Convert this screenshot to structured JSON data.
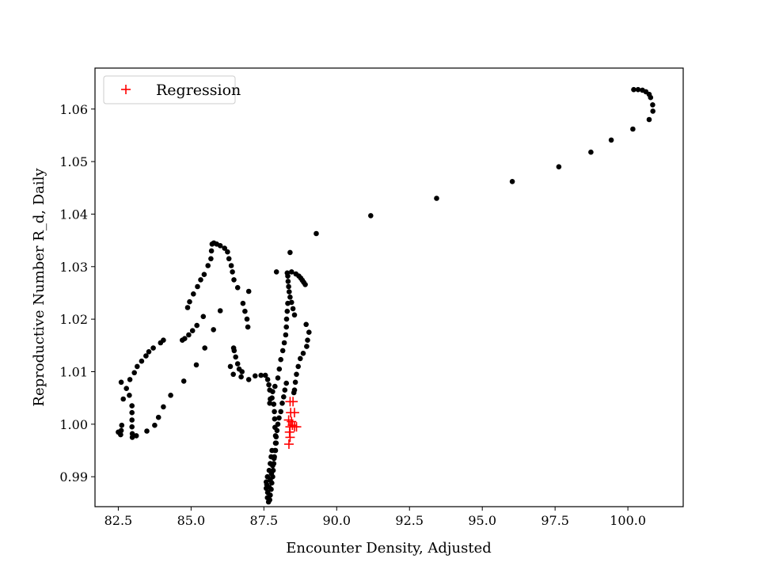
{
  "chart_data": {
    "type": "scatter",
    "title": "",
    "xlabel": "Encounter Density, Adjusted",
    "ylabel": "Reproductive Number R_d, Daily",
    "xlim": [
      81.7,
      101.9
    ],
    "ylim": [
      0.9843,
      1.0678
    ],
    "x_ticks": [
      82.5,
      85.0,
      87.5,
      90.0,
      92.5,
      95.0,
      97.5,
      100.0
    ],
    "y_ticks": [
      0.99,
      1.0,
      1.01,
      1.02,
      1.03,
      1.04,
      1.05,
      1.06
    ],
    "x_tick_labels": [
      "82.5",
      "85.0",
      "87.5",
      "90.0",
      "92.5",
      "95.0",
      "97.5",
      "100.0"
    ],
    "y_tick_labels": [
      "0.99",
      "1.00",
      "1.01",
      "1.02",
      "1.03",
      "1.04",
      "1.05",
      "1.06"
    ],
    "grid": false,
    "legend": {
      "position": "top-left",
      "entries": [
        {
          "label": "Regression",
          "marker": "+",
          "color": "#ff0000"
        }
      ]
    },
    "colors": {
      "data": "#000000",
      "regression": "#ff0000"
    },
    "series": [
      {
        "marker": "circle",
        "color": "#000000",
        "points": [
          [
            100.2,
            1.0637
          ],
          [
            100.35,
            1.0637
          ],
          [
            100.5,
            1.0636
          ],
          [
            100.62,
            1.0633
          ],
          [
            100.73,
            1.0628
          ],
          [
            100.78,
            1.0622
          ],
          [
            100.85,
            1.0608
          ],
          [
            100.86,
            1.0596
          ],
          [
            100.73,
            1.058
          ],
          [
            100.17,
            1.0562
          ],
          [
            99.43,
            1.0541
          ],
          [
            98.73,
            1.0518
          ],
          [
            97.63,
            1.049
          ],
          [
            96.03,
            1.0462
          ],
          [
            93.43,
            1.043
          ],
          [
            91.17,
            1.0397
          ],
          [
            89.3,
            1.0363
          ],
          [
            88.4,
            1.0327
          ],
          [
            88.45,
            1.029
          ],
          [
            88.3,
            1.0288
          ],
          [
            88.6,
            1.0286
          ],
          [
            88.7,
            1.0282
          ],
          [
            88.77,
            1.0278
          ],
          [
            88.82,
            1.0274
          ],
          [
            88.87,
            1.027
          ],
          [
            88.92,
            1.0266
          ],
          [
            88.32,
            1.0282
          ],
          [
            88.33,
            1.0272
          ],
          [
            88.35,
            1.0262
          ],
          [
            88.37,
            1.0252
          ],
          [
            88.4,
            1.0242
          ],
          [
            88.45,
            1.0232
          ],
          [
            88.5,
            1.022
          ],
          [
            88.55,
            1.0208
          ],
          [
            88.32,
            1.023
          ],
          [
            88.3,
            1.0215
          ],
          [
            88.28,
            1.02
          ],
          [
            88.27,
            1.0185
          ],
          [
            88.25,
            1.017
          ],
          [
            88.2,
            1.0155
          ],
          [
            88.15,
            1.014
          ],
          [
            88.08,
            1.0123
          ],
          [
            88.03,
            1.0105
          ],
          [
            87.98,
            1.0088
          ],
          [
            87.88,
            1.0072
          ],
          [
            87.8,
            1.0062
          ],
          [
            87.72,
            1.0048
          ],
          [
            87.7,
            1.004
          ],
          [
            88.95,
            1.019
          ],
          [
            89.05,
            1.0175
          ],
          [
            89.0,
            1.016
          ],
          [
            88.97,
            1.0148
          ],
          [
            88.85,
            1.0135
          ],
          [
            88.75,
            1.0125
          ],
          [
            88.68,
            1.011
          ],
          [
            88.62,
            1.0095
          ],
          [
            88.58,
            1.008
          ],
          [
            88.55,
            1.0065
          ],
          [
            88.53,
            1.006
          ],
          [
            87.55,
            1.0093
          ],
          [
            87.63,
            1.0085
          ],
          [
            87.67,
            1.0075
          ],
          [
            87.7,
            1.0065
          ],
          [
            87.78,
            1.005
          ],
          [
            87.84,
            1.0038
          ],
          [
            87.86,
            1.0024
          ],
          [
            87.87,
            1.001
          ],
          [
            87.88,
            0.9994
          ],
          [
            87.9,
            0.9978
          ],
          [
            87.92,
            0.9964
          ],
          [
            87.9,
            0.995
          ],
          [
            87.85,
            0.9935
          ],
          [
            87.8,
            0.9921
          ],
          [
            87.76,
            0.9906
          ],
          [
            87.72,
            0.9894
          ],
          [
            87.68,
            0.988
          ],
          [
            87.63,
            0.987
          ],
          [
            87.6,
            0.9885
          ],
          [
            87.58,
            0.9878
          ],
          [
            87.62,
            0.986
          ],
          [
            87.66,
            0.9852
          ],
          [
            87.7,
            0.9856
          ],
          [
            87.72,
            0.9865
          ],
          [
            87.75,
            0.9876
          ],
          [
            87.77,
            0.9888
          ],
          [
            87.8,
            0.99
          ],
          [
            87.82,
            0.9912
          ],
          [
            87.84,
            0.9925
          ],
          [
            87.86,
            0.9938
          ],
          [
            87.88,
            0.995
          ],
          [
            87.9,
            0.9964
          ],
          [
            87.92,
            0.9976
          ],
          [
            87.95,
            0.9988
          ],
          [
            87.98,
            1.0
          ],
          [
            88.02,
            1.0012
          ],
          [
            88.08,
            1.0024
          ],
          [
            88.13,
            1.004
          ],
          [
            88.18,
            1.0052
          ],
          [
            88.22,
            1.0065
          ],
          [
            88.27,
            1.0078
          ],
          [
            87.58,
            0.989
          ],
          [
            87.62,
            0.99
          ],
          [
            87.68,
            0.9912
          ],
          [
            87.72,
            0.9925
          ],
          [
            87.75,
            0.9938
          ],
          [
            87.78,
            0.995
          ],
          [
            87.93,
            1.029
          ],
          [
            87.4,
            1.0093
          ],
          [
            87.2,
            1.0092
          ],
          [
            86.98,
            1.0085
          ],
          [
            86.75,
            1.01
          ],
          [
            86.6,
            1.0115
          ],
          [
            86.53,
            1.0128
          ],
          [
            86.48,
            1.014
          ],
          [
            86.46,
            1.0145
          ],
          [
            86.95,
            1.0185
          ],
          [
            86.92,
            1.02
          ],
          [
            86.85,
            1.0215
          ],
          [
            86.78,
            1.023
          ],
          [
            86.6,
            1.026
          ],
          [
            86.47,
            1.0275
          ],
          [
            86.42,
            1.029
          ],
          [
            86.38,
            1.0302
          ],
          [
            86.3,
            1.0315
          ],
          [
            86.25,
            1.0328
          ],
          [
            86.15,
            1.0335
          ],
          [
            86.0,
            1.034
          ],
          [
            85.88,
            1.0343
          ],
          [
            85.78,
            1.0345
          ],
          [
            85.72,
            1.0343
          ],
          [
            85.7,
            1.033
          ],
          [
            85.68,
            1.0315
          ],
          [
            85.58,
            1.0302
          ],
          [
            85.45,
            1.0285
          ],
          [
            85.33,
            1.0275
          ],
          [
            85.22,
            1.0262
          ],
          [
            85.08,
            1.0248
          ],
          [
            84.95,
            1.0233
          ],
          [
            84.88,
            1.0222
          ],
          [
            86.0,
            1.0216
          ],
          [
            85.42,
            1.0205
          ],
          [
            85.2,
            1.0188
          ],
          [
            85.05,
            1.0178
          ],
          [
            84.92,
            1.017
          ],
          [
            84.78,
            1.0163
          ],
          [
            84.7,
            1.016
          ],
          [
            85.77,
            1.018
          ],
          [
            85.47,
            1.0145
          ],
          [
            85.18,
            1.0113
          ],
          [
            84.75,
            1.0082
          ],
          [
            84.3,
            1.0055
          ],
          [
            84.05,
            1.0033
          ],
          [
            83.88,
            1.0013
          ],
          [
            83.75,
            0.9998
          ],
          [
            83.48,
            0.9987
          ],
          [
            83.12,
            0.9978
          ],
          [
            82.98,
            0.9975
          ],
          [
            82.98,
            0.9982
          ],
          [
            82.97,
            0.9995
          ],
          [
            82.97,
            1.0008
          ],
          [
            82.97,
            1.0022
          ],
          [
            82.97,
            1.0035
          ],
          [
            82.88,
            1.0055
          ],
          [
            82.78,
            1.0068
          ],
          [
            82.67,
            1.0048
          ],
          [
            82.62,
            0.9998
          ],
          [
            82.6,
            0.9988
          ],
          [
            82.58,
            0.998
          ],
          [
            82.5,
            0.9985
          ],
          [
            82.6,
            1.008
          ],
          [
            82.9,
            1.0085
          ],
          [
            83.05,
            1.0098
          ],
          [
            83.15,
            1.011
          ],
          [
            83.3,
            1.012
          ],
          [
            83.45,
            1.013
          ],
          [
            83.55,
            1.0138
          ],
          [
            83.7,
            1.0145
          ],
          [
            83.95,
            1.0155
          ],
          [
            84.05,
            1.016
          ],
          [
            86.72,
            1.009
          ],
          [
            86.45,
            1.0095
          ],
          [
            86.35,
            1.011
          ],
          [
            86.65,
            1.0105
          ],
          [
            86.98,
            1.0253
          ]
        ]
      },
      {
        "name": "Regression",
        "marker": "+",
        "color": "#ff0000",
        "points": [
          [
            88.4,
            1.0043
          ],
          [
            88.5,
            1.0043
          ],
          [
            88.42,
            1.0022
          ],
          [
            88.55,
            1.0022
          ],
          [
            88.35,
            1.0008
          ],
          [
            88.45,
            1.0005
          ],
          [
            88.48,
            0.9998
          ],
          [
            88.55,
            0.9995
          ],
          [
            88.62,
            0.9995
          ],
          [
            88.4,
            0.9995
          ],
          [
            88.38,
            0.9985
          ],
          [
            88.4,
            0.9975
          ],
          [
            88.36,
            0.9962
          ]
        ]
      }
    ]
  }
}
